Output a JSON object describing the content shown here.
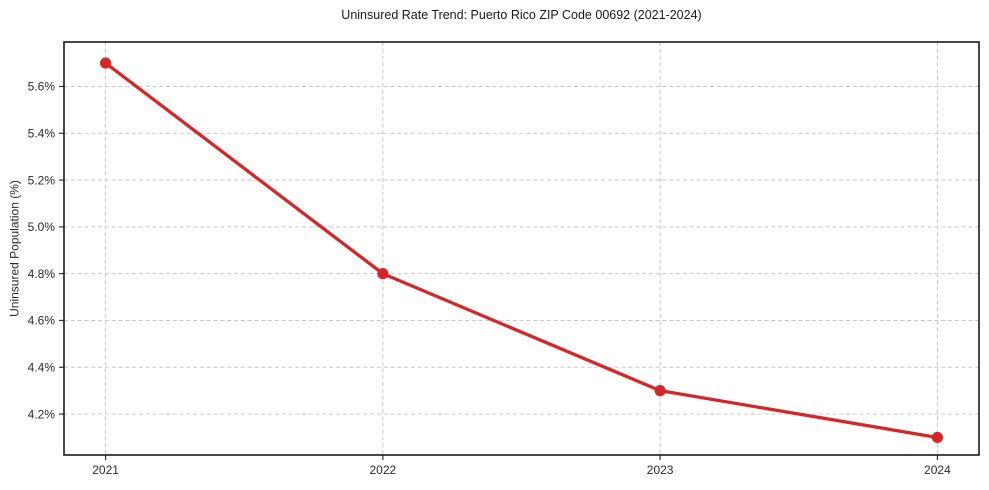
{
  "chart_data": {
    "type": "line",
    "title": "Uninsured Rate Trend: Puerto Rico ZIP Code 00692 (2021-2024)",
    "xlabel": "",
    "ylabel": "Uninsured Population (%)",
    "x": [
      2021,
      2022,
      2023,
      2024
    ],
    "values": [
      5.7,
      4.8,
      4.3,
      4.1
    ],
    "xticks": [
      2021,
      2022,
      2023,
      2024
    ],
    "xtick_labels": [
      "2021",
      "2022",
      "2023",
      "2024"
    ],
    "yticks": [
      4.2,
      4.4,
      4.6,
      4.8,
      5.0,
      5.2,
      5.4,
      5.6
    ],
    "ytick_labels": [
      "4.2%",
      "4.4%",
      "4.6%",
      "4.8%",
      "5.0%",
      "5.2%",
      "5.4%",
      "5.6%"
    ],
    "xlim": [
      2020.85,
      2024.15
    ],
    "ylim": [
      4.025,
      5.79
    ],
    "grid": true,
    "grid_style": "dashed",
    "legend": false,
    "marker": "o",
    "colors": {
      "line": "#d62728",
      "marker": "#d62728",
      "grid": "#c9c9c9",
      "spine": "#1a1a1a",
      "tick": "#333333",
      "tick_label": "#2b2b2b",
      "title": "#1a1a1a",
      "background": "#ffffff"
    }
  }
}
